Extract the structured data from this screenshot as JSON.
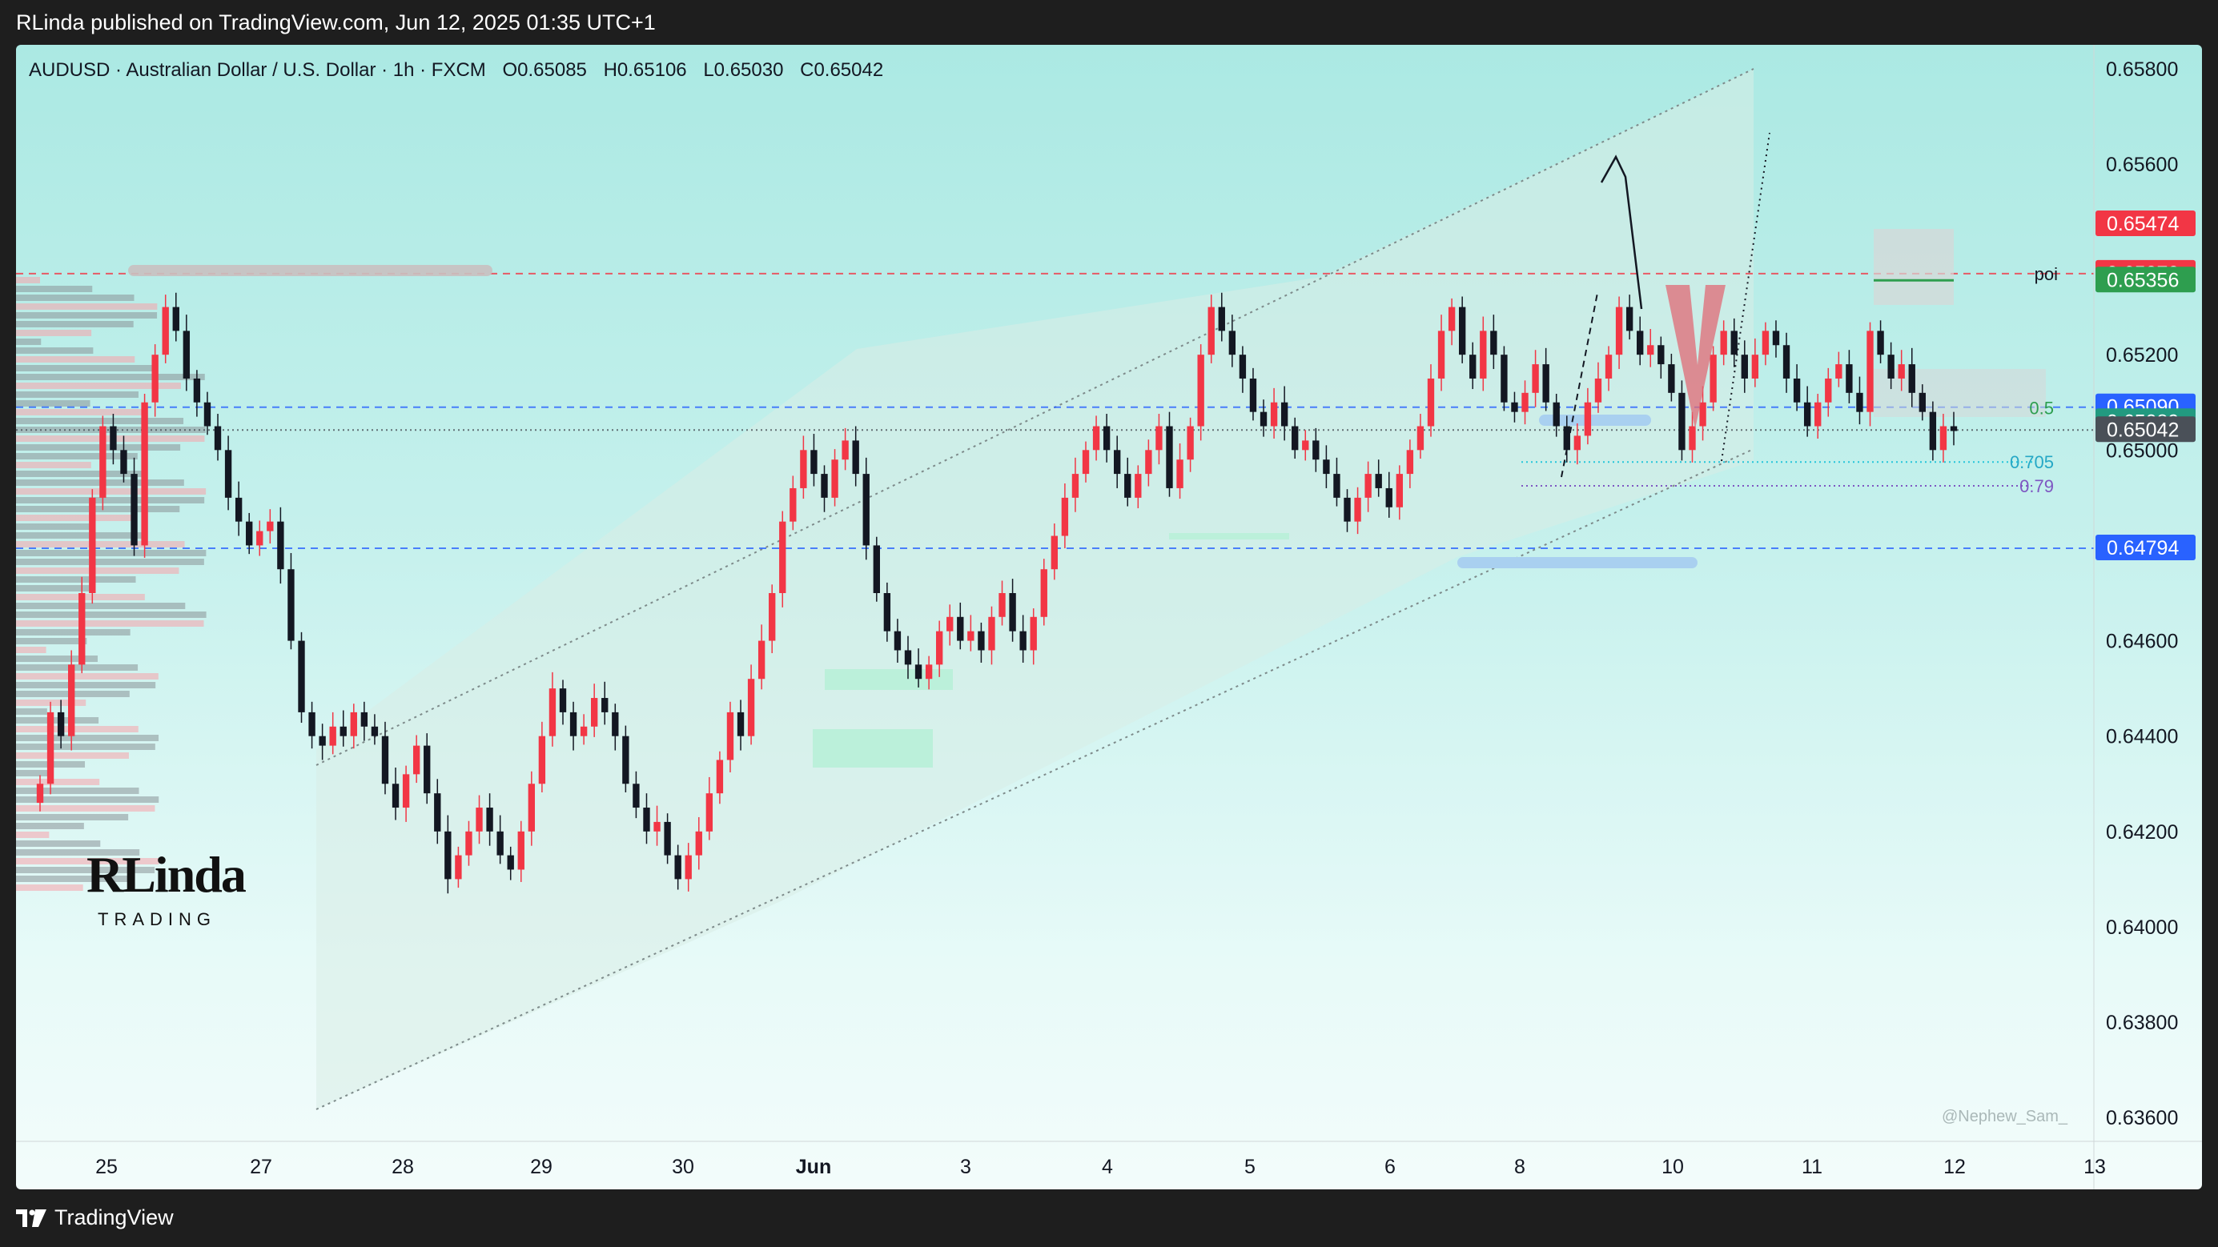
{
  "header": {
    "published_text": "RLinda published on TradingView.com, Jun 12, 2025 01:35 UTC+1"
  },
  "symbol_bar": {
    "title": "AUDUSD · Australian Dollar / U.S. Dollar · 1h · FXCM",
    "open": "O0.65085",
    "high": "H0.65106",
    "low": "L0.65030",
    "close": "C0.65042"
  },
  "footer": {
    "brand": "TradingView",
    "brand_icon": "tradingview-logo-icon"
  },
  "watermark": "@Nephew_Sam_",
  "logo": {
    "main": "RLinda",
    "sub": "TRADING"
  },
  "colors": {
    "bull": "#f23645",
    "bear": "#131722",
    "accent_blue": "#2962ff",
    "accent_green": "#26a269",
    "background_top": "#abe9e3"
  },
  "chart_data": {
    "type": "candlestick",
    "symbol": "AUDUSD",
    "timeframe": "1h",
    "source": "FXCM",
    "x_ticks": [
      "25",
      "27",
      "28",
      "29",
      "30",
      "Jun",
      "3",
      "4",
      "5",
      "6",
      "8",
      "10",
      "11",
      "12",
      "13"
    ],
    "y_ticks": [
      "0.65800",
      "0.65600",
      "0.65200",
      "0.65000",
      "0.64600",
      "0.64400",
      "0.64200",
      "0.64000",
      "0.63800",
      "0.63600"
    ],
    "ylim": [
      0.6355,
      0.6585
    ],
    "price_labels": [
      {
        "value": "0.65474",
        "color": "#f23645"
      },
      {
        "value": "0.65370",
        "color": "#f23645"
      },
      {
        "value": "0.65356",
        "color": "#2e9e4f"
      },
      {
        "value": "0.65090",
        "color": "#2962ff"
      },
      {
        "value": "0.65089",
        "color": "#229a80"
      },
      {
        "value": "0.65042",
        "color": "#4a5058"
      },
      {
        "value": "0.64794",
        "color": "#2962ff"
      }
    ],
    "annotations": [
      {
        "text": "poi",
        "price": 0.6537
      },
      {
        "text": "0.5",
        "price": 0.65089
      },
      {
        "text": "0.705",
        "price": 0.64975
      },
      {
        "text": "0.79",
        "price": 0.64925
      }
    ],
    "key_levels": [
      {
        "price": 0.6537,
        "style": "dashed",
        "color": "#f23645"
      },
      {
        "price": 0.6509,
        "style": "dashed",
        "color": "#2962ff"
      },
      {
        "price": 0.64794,
        "style": "dashed",
        "color": "#2962ff"
      },
      {
        "price": 0.65042,
        "style": "dotted",
        "color": "#4a5058"
      }
    ],
    "candles_close": [
      0.643,
      0.6445,
      0.644,
      0.6455,
      0.647,
      0.649,
      0.6505,
      0.65,
      0.6495,
      0.648,
      0.651,
      0.652,
      0.653,
      0.6525,
      0.6515,
      0.651,
      0.6505,
      0.65,
      0.649,
      0.6485,
      0.648,
      0.6483,
      0.6485,
      0.6475,
      0.646,
      0.6445,
      0.644,
      0.6438,
      0.6442,
      0.644,
      0.6445,
      0.6442,
      0.644,
      0.643,
      0.6425,
      0.6432,
      0.6438,
      0.6428,
      0.642,
      0.641,
      0.6415,
      0.642,
      0.6425,
      0.642,
      0.6415,
      0.6412,
      0.642,
      0.643,
      0.644,
      0.645,
      0.6445,
      0.644,
      0.6442,
      0.6448,
      0.6445,
      0.644,
      0.643,
      0.6425,
      0.642,
      0.6422,
      0.6415,
      0.641,
      0.6415,
      0.642,
      0.6428,
      0.6435,
      0.6445,
      0.644,
      0.6452,
      0.646,
      0.647,
      0.6485,
      0.6492,
      0.65,
      0.6495,
      0.649,
      0.6498,
      0.6502,
      0.6495,
      0.648,
      0.647,
      0.6462,
      0.6458,
      0.6455,
      0.6452,
      0.6455,
      0.6462,
      0.6465,
      0.646,
      0.6462,
      0.6458,
      0.6465,
      0.647,
      0.6462,
      0.6458,
      0.6465,
      0.6475,
      0.6482,
      0.649,
      0.6495,
      0.65,
      0.6505,
      0.65,
      0.6495,
      0.649,
      0.6495,
      0.65,
      0.6505,
      0.6492,
      0.6498,
      0.6505,
      0.652,
      0.653,
      0.6525,
      0.652,
      0.6515,
      0.6508,
      0.6505,
      0.651,
      0.6505,
      0.65,
      0.6502,
      0.6498,
      0.6495,
      0.649,
      0.6485,
      0.649,
      0.6495,
      0.6492,
      0.6488,
      0.6495,
      0.65,
      0.6505,
      0.6515,
      0.6525,
      0.653,
      0.652,
      0.6515,
      0.6525,
      0.652,
      0.651,
      0.6508,
      0.6512,
      0.6518,
      0.651,
      0.6505,
      0.65,
      0.6503,
      0.651,
      0.6515,
      0.652,
      0.653,
      0.6525,
      0.652,
      0.6522,
      0.6518,
      0.6512,
      0.65,
      0.6505,
      0.651,
      0.652,
      0.6525,
      0.652,
      0.6515,
      0.652,
      0.6525,
      0.6522,
      0.6515,
      0.651,
      0.6505,
      0.651,
      0.6515,
      0.6518,
      0.6512,
      0.6508,
      0.6525,
      0.652,
      0.6515,
      0.6518,
      0.6512,
      0.6508,
      0.65,
      0.6505,
      0.6504
    ]
  }
}
